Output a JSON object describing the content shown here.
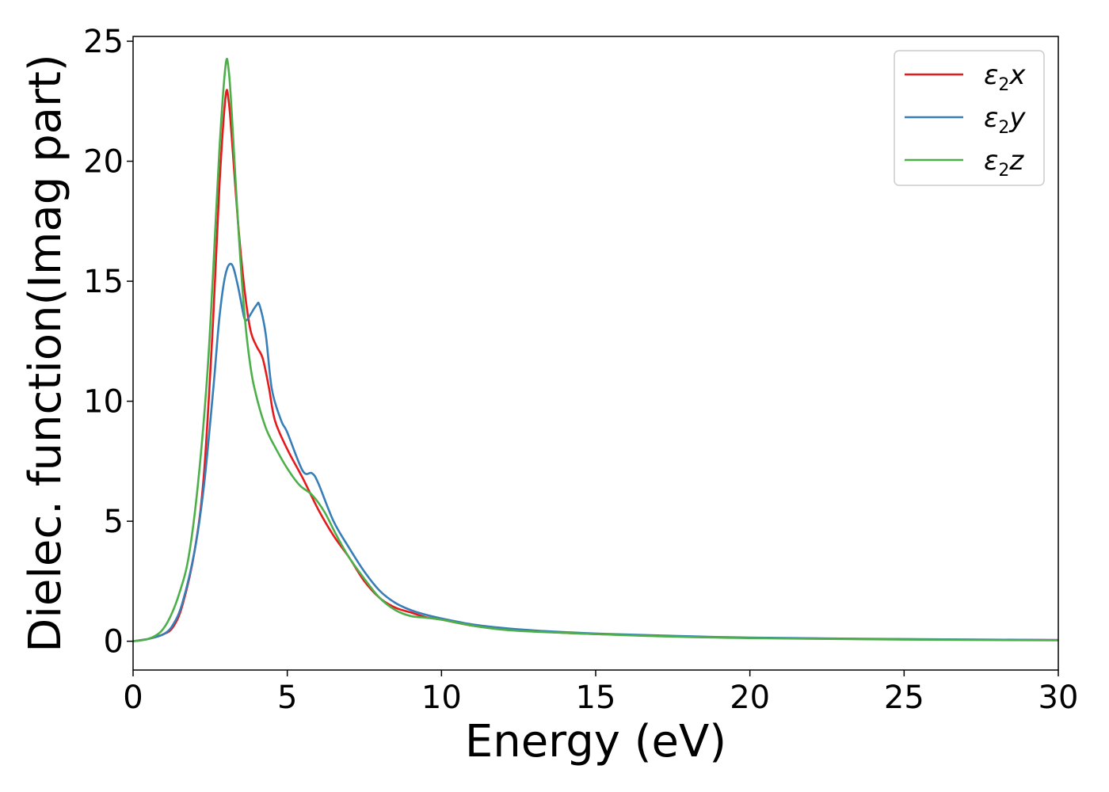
{
  "chart_data": {
    "type": "line",
    "xlabel": "Energy (eV)",
    "ylabel": "Dielec. function(Imag part)",
    "xlim": [
      0,
      30
    ],
    "ylim": [
      -1.2,
      25.2
    ],
    "xticks": [
      "0",
      "5",
      "10",
      "15",
      "20",
      "25",
      "30"
    ],
    "yticks": [
      "0",
      "5",
      "10",
      "15",
      "20",
      "25"
    ],
    "grid": false,
    "legend_position": "top-right",
    "series": [
      {
        "name": "ε2x",
        "legend": {
          "base": "ε",
          "sub": "2",
          "tail": "x"
        },
        "color": "#e41a1c",
        "x": [
          0,
          0.5,
          1.0,
          1.3,
          1.6,
          2.0,
          2.3,
          2.6,
          2.8,
          3.0,
          3.1,
          3.2,
          3.4,
          3.6,
          3.8,
          4.0,
          4.2,
          4.4,
          4.6,
          5.0,
          5.5,
          6.0,
          6.5,
          7.0,
          7.5,
          8.0,
          8.5,
          9.0,
          9.5,
          10.0,
          11.0,
          12.0,
          13.0,
          14.0,
          15.0,
          17.0,
          20.0,
          25.0,
          30.0
        ],
        "y": [
          0,
          0.1,
          0.3,
          0.6,
          1.5,
          3.8,
          7.0,
          13.5,
          19.0,
          22.7,
          22.5,
          21.0,
          17.5,
          14.8,
          13.0,
          12.3,
          11.8,
          10.6,
          9.2,
          8.0,
          6.8,
          5.5,
          4.4,
          3.5,
          2.5,
          1.8,
          1.4,
          1.2,
          1.0,
          0.9,
          0.65,
          0.5,
          0.42,
          0.35,
          0.3,
          0.22,
          0.14,
          0.08,
          0.05
        ]
      },
      {
        "name": "ε2y",
        "legend": {
          "base": "ε",
          "sub": "2",
          "tail": "y"
        },
        "color": "#377eb8",
        "x": [
          0,
          0.5,
          1.0,
          1.3,
          1.6,
          2.0,
          2.3,
          2.6,
          2.8,
          3.0,
          3.2,
          3.4,
          3.6,
          3.7,
          3.8,
          4.0,
          4.1,
          4.3,
          4.5,
          4.8,
          5.0,
          5.5,
          5.8,
          6.0,
          6.5,
          7.0,
          7.5,
          8.0,
          8.5,
          9.0,
          9.5,
          10.0,
          11.0,
          12.0,
          13.0,
          14.0,
          15.0,
          17.0,
          20.0,
          25.0,
          30.0
        ],
        "y": [
          0,
          0.1,
          0.3,
          0.7,
          1.6,
          3.8,
          6.5,
          10.5,
          13.5,
          15.3,
          15.7,
          14.8,
          13.5,
          13.4,
          13.6,
          14.0,
          14.0,
          12.8,
          10.5,
          9.2,
          8.7,
          7.1,
          7.0,
          6.6,
          5.0,
          3.9,
          2.9,
          2.1,
          1.6,
          1.3,
          1.1,
          0.95,
          0.7,
          0.55,
          0.45,
          0.38,
          0.32,
          0.24,
          0.15,
          0.09,
          0.05
        ]
      },
      {
        "name": "ε2z",
        "legend": {
          "base": "ε",
          "sub": "2",
          "tail": "z"
        },
        "color": "#4daf4a",
        "x": [
          0,
          0.5,
          0.9,
          1.2,
          1.5,
          1.8,
          2.1,
          2.4,
          2.6,
          2.8,
          3.0,
          3.1,
          3.2,
          3.4,
          3.6,
          3.8,
          4.0,
          4.3,
          4.6,
          5.0,
          5.4,
          5.8,
          6.2,
          6.6,
          7.0,
          7.5,
          8.0,
          8.5,
          9.0,
          9.5,
          10.0,
          11.0,
          12.0,
          13.0,
          15.0,
          17.0,
          20.0,
          25.0,
          30.0
        ],
        "y": [
          0,
          0.1,
          0.4,
          1.0,
          2.0,
          3.5,
          6.5,
          11.0,
          15.5,
          20.5,
          24.0,
          23.8,
          22.0,
          17.5,
          13.8,
          11.5,
          10.2,
          8.9,
          8.1,
          7.2,
          6.5,
          6.1,
          5.4,
          4.4,
          3.5,
          2.6,
          1.8,
          1.3,
          1.05,
          0.98,
          0.9,
          0.65,
          0.48,
          0.4,
          0.3,
          0.21,
          0.13,
          0.07,
          0.04
        ]
      }
    ]
  }
}
